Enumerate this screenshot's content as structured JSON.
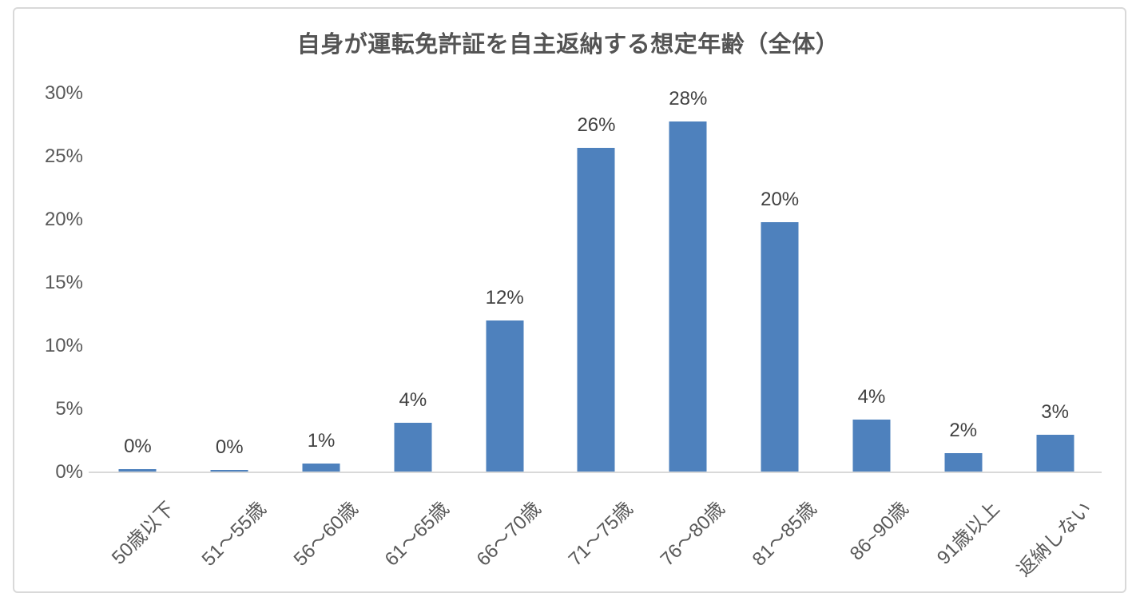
{
  "chart_data": {
    "type": "bar",
    "title": "自身が運転免許証を自主返納する想定年齢（全体）",
    "categories": [
      "50歳以下",
      "51～55歳",
      "56～60歳",
      "61～65歳",
      "66～70歳",
      "71～75歳",
      "76～80歳",
      "81～85歳",
      "86~90歳",
      "91歳以上",
      "返納しない"
    ],
    "values": [
      0,
      0,
      1,
      4,
      12,
      26,
      28,
      20,
      4,
      2,
      3
    ],
    "value_labels": [
      "0%",
      "0%",
      "1%",
      "4%",
      "12%",
      "26%",
      "28%",
      "20%",
      "4%",
      "2%",
      "3%"
    ],
    "bar_heights_pct": [
      0.25,
      0.2,
      0.7,
      3.9,
      12.0,
      25.7,
      27.8,
      19.8,
      4.2,
      1.5,
      3.0
    ],
    "xlabel": "",
    "ylabel": "",
    "ylim": [
      0,
      30
    ],
    "ytick_step": 5,
    "ytick_labels": [
      "0%",
      "5%",
      "10%",
      "15%",
      "20%",
      "25%",
      "30%"
    ],
    "grid": false,
    "legend_position": "none",
    "bar_color": "#4E81BD",
    "axis_line_color": "#D9D9D9",
    "title_color": "#545454",
    "tick_label_color": "#595959",
    "value_label_color": "#404040",
    "frame_border_color": "#D9D9D9"
  }
}
